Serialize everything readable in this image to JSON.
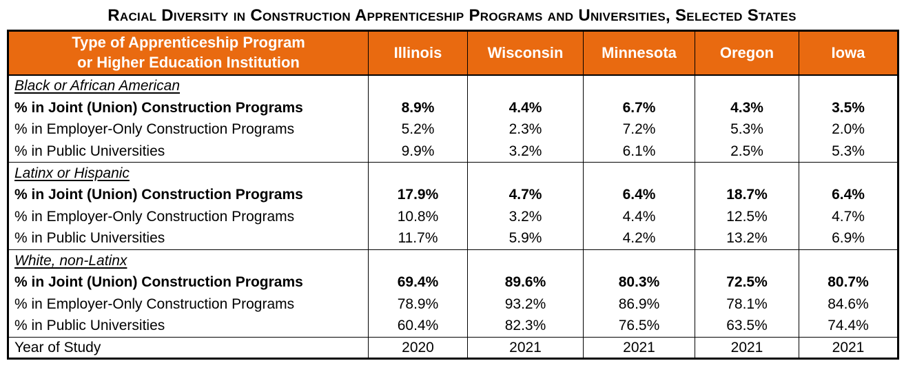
{
  "title": "Racial Diversity in Construction Apprenticeship Programs and Universities, Selected States",
  "colors": {
    "header_bg": "#E96A10",
    "header_text": "#FFFFFF",
    "border": "#000000",
    "body_text": "#000000"
  },
  "table": {
    "header": {
      "label_line1": "Type of Apprenticeship Program",
      "label_line2": "or Higher Education Institution",
      "states": [
        "Illinois",
        "Wisconsin",
        "Minnesota",
        "Oregon",
        "Iowa"
      ]
    },
    "sections": [
      {
        "group": "Black or African American",
        "rows": [
          {
            "label": "% in Joint (Union) Construction Programs",
            "bold": true,
            "values": [
              "8.9%",
              "4.4%",
              "6.7%",
              "4.3%",
              "3.5%"
            ]
          },
          {
            "label": "% in Employer-Only Construction Programs",
            "bold": false,
            "values": [
              "5.2%",
              "2.3%",
              "7.2%",
              "5.3%",
              "2.0%"
            ]
          },
          {
            "label": "% in Public Universities",
            "bold": false,
            "values": [
              "9.9%",
              "3.2%",
              "6.1%",
              "2.5%",
              "5.3%"
            ]
          }
        ]
      },
      {
        "group": "Latinx or Hispanic",
        "rows": [
          {
            "label": "% in Joint (Union) Construction Programs",
            "bold": true,
            "values": [
              "17.9%",
              "4.7%",
              "6.4%",
              "18.7%",
              "6.4%"
            ]
          },
          {
            "label": "% in Employer-Only Construction Programs",
            "bold": false,
            "values": [
              "10.8%",
              "3.2%",
              "4.4%",
              "12.5%",
              "4.7%"
            ]
          },
          {
            "label": "% in Public Universities",
            "bold": false,
            "values": [
              "11.7%",
              "5.9%",
              "4.2%",
              "13.2%",
              "6.9%"
            ]
          }
        ]
      },
      {
        "group": "White, non-Latinx",
        "rows": [
          {
            "label": "% in Joint (Union) Construction Programs",
            "bold": true,
            "values": [
              "69.4%",
              "89.6%",
              "80.3%",
              "72.5%",
              "80.7%"
            ]
          },
          {
            "label": "% in Employer-Only Construction Programs",
            "bold": false,
            "values": [
              "78.9%",
              "93.2%",
              "86.9%",
              "78.1%",
              "84.6%"
            ]
          },
          {
            "label": "% in Public Universities",
            "bold": false,
            "values": [
              "60.4%",
              "82.3%",
              "76.5%",
              "63.5%",
              "74.4%"
            ]
          }
        ]
      }
    ],
    "footer": {
      "label": "Year of Study",
      "values": [
        "2020",
        "2021",
        "2021",
        "2021",
        "2021"
      ]
    }
  },
  "chart_data": {
    "type": "table",
    "title": "Racial Diversity in Construction Apprenticeship Programs and Universities, Selected States",
    "columns": [
      "Type of Apprenticeship Program or Higher Education Institution",
      "Illinois",
      "Wisconsin",
      "Minnesota",
      "Oregon",
      "Iowa"
    ],
    "groups": [
      {
        "name": "Black or African American",
        "rows": [
          {
            "label": "% in Joint (Union) Construction Programs",
            "values_pct": [
              8.9,
              4.4,
              6.7,
              4.3,
              3.5
            ]
          },
          {
            "label": "% in Employer-Only Construction Programs",
            "values_pct": [
              5.2,
              2.3,
              7.2,
              5.3,
              2.0
            ]
          },
          {
            "label": "% in Public Universities",
            "values_pct": [
              9.9,
              3.2,
              6.1,
              2.5,
              5.3
            ]
          }
        ]
      },
      {
        "name": "Latinx or Hispanic",
        "rows": [
          {
            "label": "% in Joint (Union) Construction Programs",
            "values_pct": [
              17.9,
              4.7,
              6.4,
              18.7,
              6.4
            ]
          },
          {
            "label": "% in Employer-Only Construction Programs",
            "values_pct": [
              10.8,
              3.2,
              4.4,
              12.5,
              4.7
            ]
          },
          {
            "label": "% in Public Universities",
            "values_pct": [
              11.7,
              5.9,
              4.2,
              13.2,
              6.9
            ]
          }
        ]
      },
      {
        "name": "White, non-Latinx",
        "rows": [
          {
            "label": "% in Joint (Union) Construction Programs",
            "values_pct": [
              69.4,
              89.6,
              80.3,
              72.5,
              80.7
            ]
          },
          {
            "label": "% in Employer-Only Construction Programs",
            "values_pct": [
              78.9,
              93.2,
              86.9,
              78.1,
              84.6
            ]
          },
          {
            "label": "% in Public Universities",
            "values_pct": [
              60.4,
              82.3,
              76.5,
              63.5,
              74.4
            ]
          }
        ]
      }
    ],
    "year_of_study": [
      2020,
      2021,
      2021,
      2021,
      2021
    ]
  }
}
